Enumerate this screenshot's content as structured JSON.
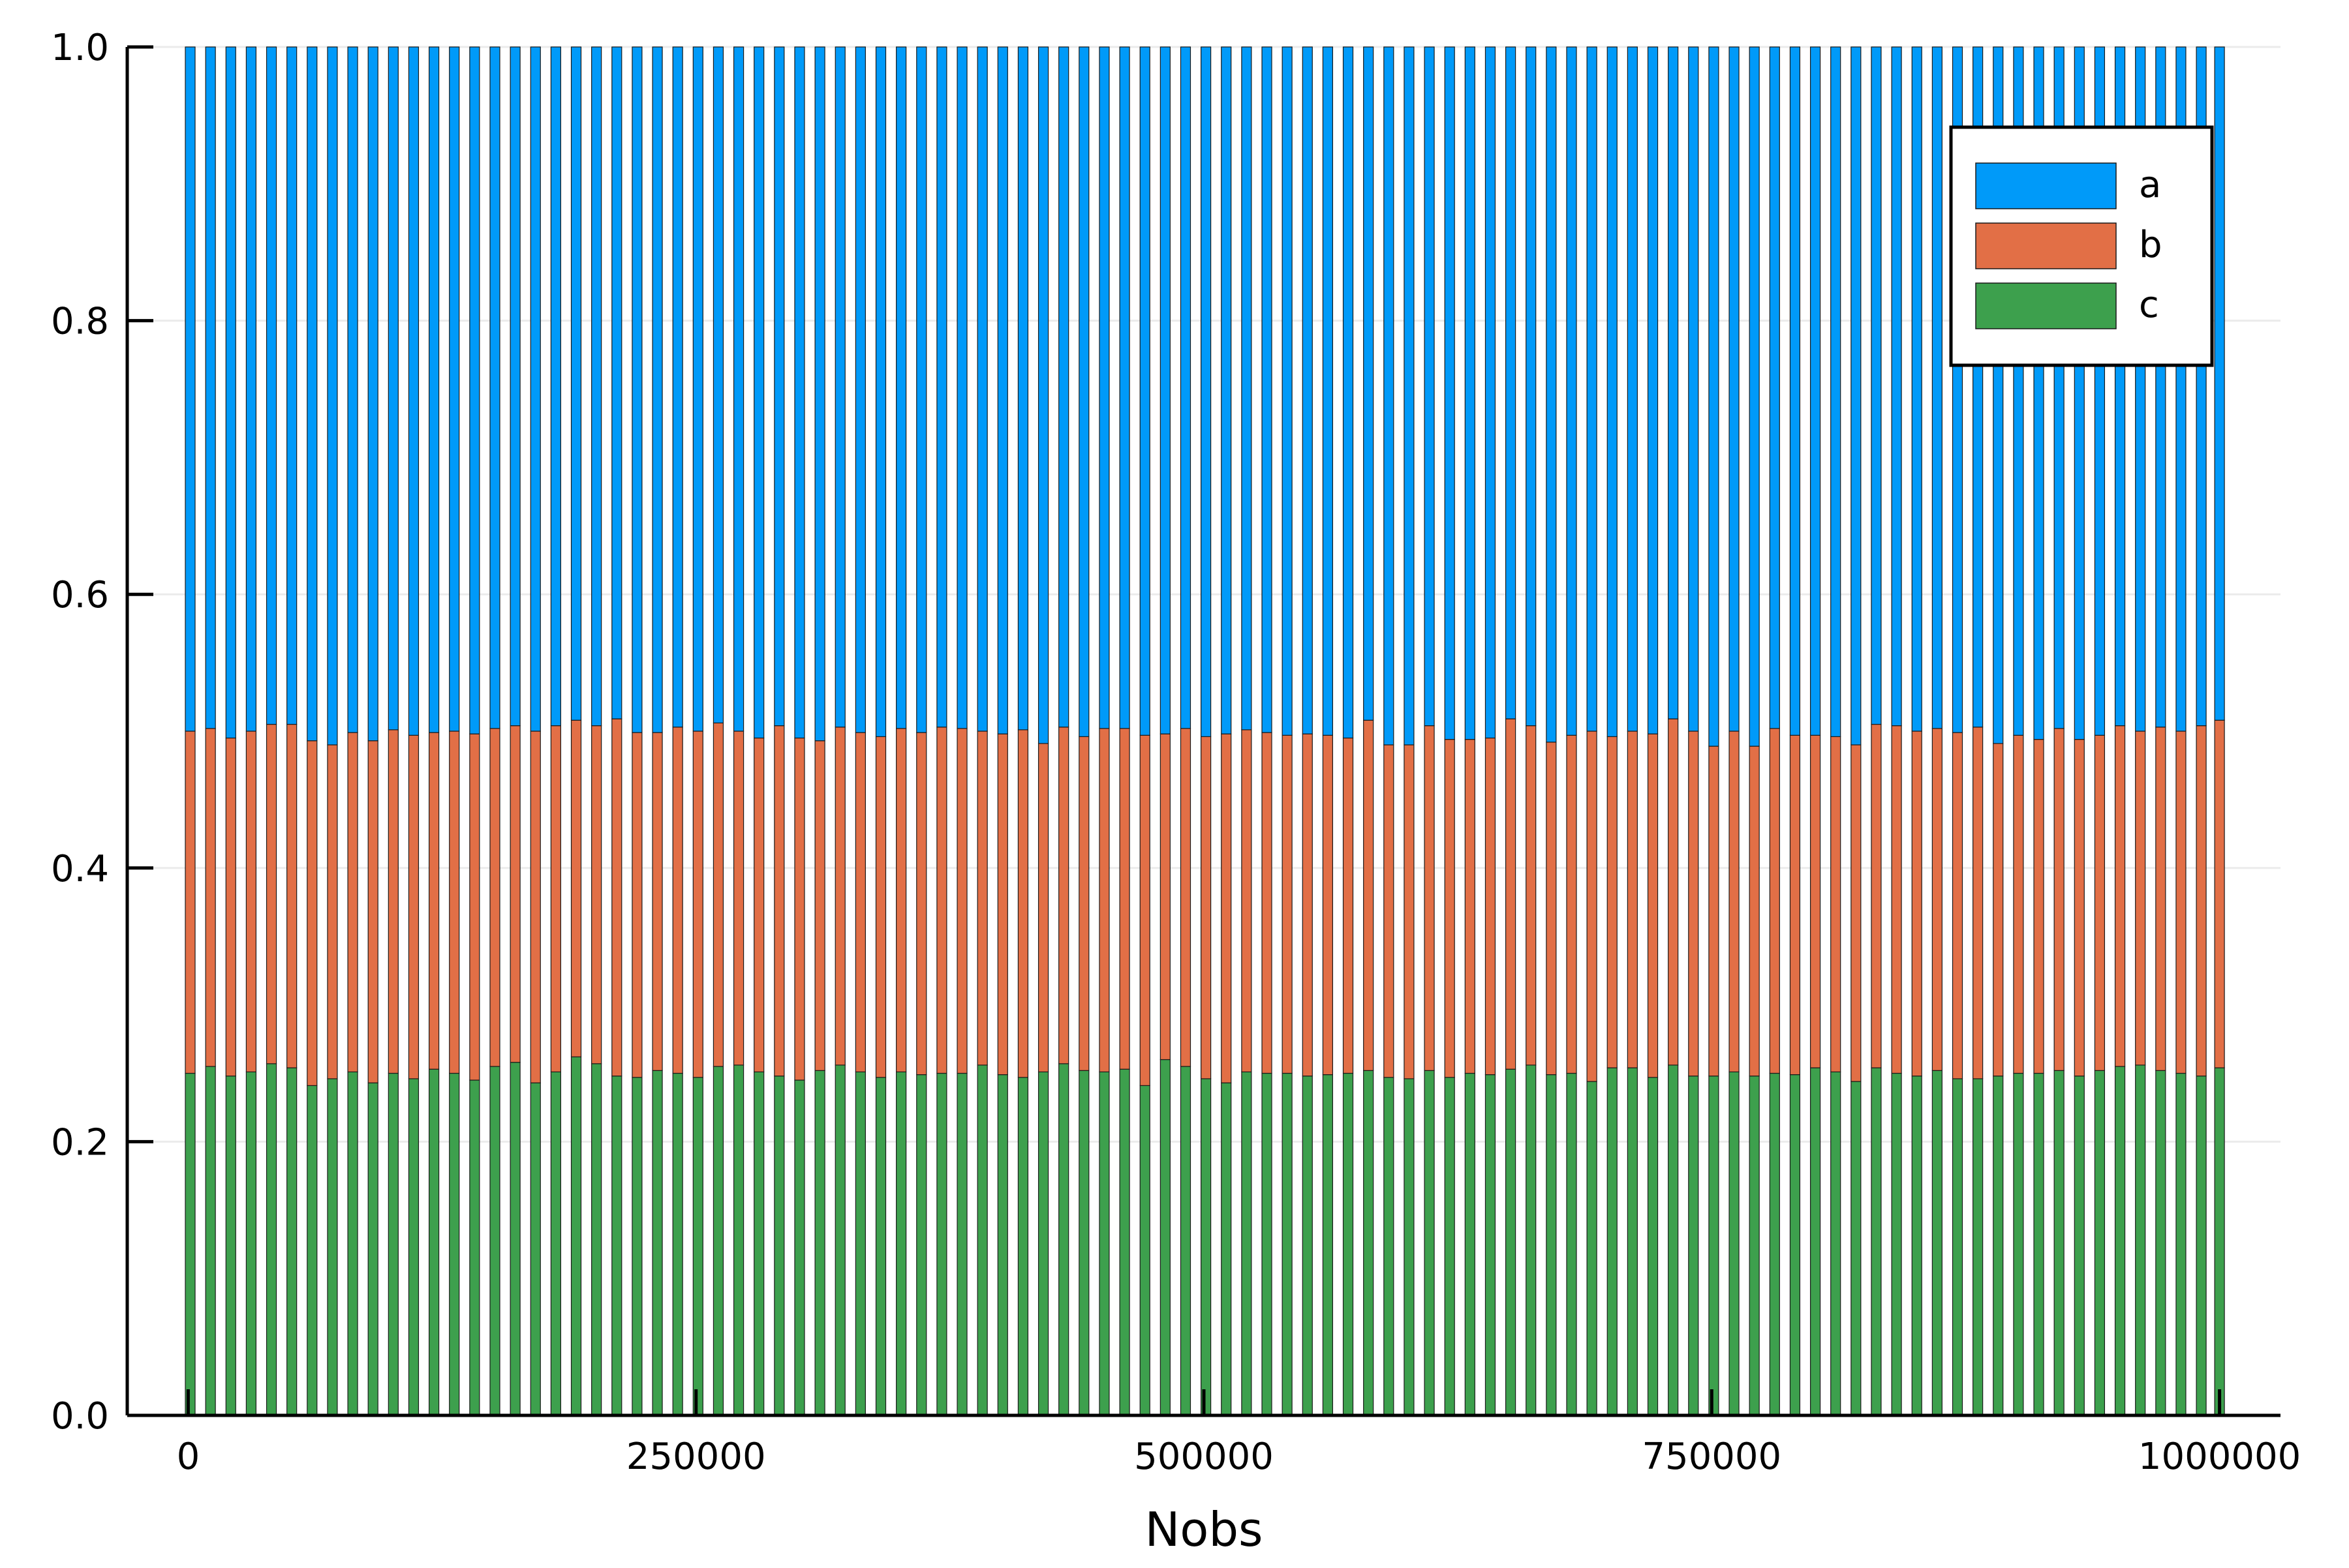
{
  "chart_data": {
    "type": "bar",
    "stacked": true,
    "xlabel": "Nobs",
    "ylabel": "",
    "title": "",
    "xlim": [
      -30000,
      1030000
    ],
    "ylim": [
      0,
      1
    ],
    "x_ticks": [
      0,
      250000,
      500000,
      750000,
      1000000
    ],
    "x_tick_labels": [
      "0",
      "250000",
      "500000",
      "750000",
      "1000000"
    ],
    "y_ticks": [
      0,
      0.2,
      0.4,
      0.6,
      0.8,
      1.0
    ],
    "y_tick_labels": [
      "0.0",
      "0.2",
      "0.4",
      "0.6",
      "0.8",
      "1.0"
    ],
    "grid": true,
    "legend_position": "top-right",
    "x": [
      1000,
      11000,
      21000,
      31000,
      41000,
      51000,
      61000,
      71000,
      81000,
      91000,
      101000,
      111000,
      121000,
      131000,
      141000,
      151000,
      161000,
      171000,
      181000,
      191000,
      201000,
      211000,
      221000,
      231000,
      241000,
      251000,
      261000,
      271000,
      281000,
      291000,
      301000,
      311000,
      321000,
      331000,
      341000,
      351000,
      361000,
      371000,
      381000,
      391000,
      401000,
      411000,
      421000,
      431000,
      441000,
      451000,
      461000,
      471000,
      481000,
      491000,
      501000,
      511000,
      521000,
      531000,
      541000,
      551000,
      561000,
      571000,
      581000,
      591000,
      601000,
      611000,
      621000,
      631000,
      641000,
      651000,
      661000,
      671000,
      681000,
      691000,
      701000,
      711000,
      721000,
      731000,
      741000,
      751000,
      761000,
      771000,
      781000,
      791000,
      801000,
      811000,
      821000,
      831000,
      841000,
      851000,
      861000,
      871000,
      881000,
      891000,
      901000,
      911000,
      921000,
      931000,
      941000,
      951000,
      961000,
      971000,
      981000,
      991000,
      1000000
    ],
    "series": [
      {
        "name": "c",
        "color": "#3DA04D",
        "values": [
          0.25,
          0.255,
          0.248,
          0.251,
          0.257,
          0.254,
          0.241,
          0.246,
          0.251,
          0.243,
          0.25,
          0.246,
          0.253,
          0.25,
          0.245,
          0.255,
          0.258,
          0.243,
          0.251,
          0.262,
          0.257,
          0.248,
          0.247,
          0.252,
          0.25,
          0.247,
          0.255,
          0.256,
          0.251,
          0.248,
          0.245,
          0.252,
          0.256,
          0.251,
          0.247,
          0.251,
          0.249,
          0.25,
          0.25,
          0.256,
          0.249,
          0.247,
          0.251,
          0.257,
          0.252,
          0.251,
          0.253,
          0.241,
          0.26,
          0.255,
          0.246,
          0.243,
          0.251,
          0.25,
          0.25,
          0.248,
          0.249,
          0.25,
          0.252,
          0.247,
          0.246,
          0.252,
          0.247,
          0.25,
          0.249,
          0.253,
          0.256,
          0.249,
          0.25,
          0.244,
          0.254,
          0.254,
          0.247,
          0.256,
          0.248,
          0.248,
          0.251,
          0.248,
          0.25,
          0.249,
          0.254,
          0.251,
          0.244,
          0.254,
          0.25,
          0.248,
          0.252,
          0.246,
          0.246,
          0.248,
          0.25,
          0.25,
          0.252,
          0.248,
          0.252,
          0.255,
          0.256,
          0.252,
          0.25,
          0.248,
          0.254
        ]
      },
      {
        "name": "b",
        "color": "#E26F46",
        "values": [
          0.25,
          0.247,
          0.247,
          0.249,
          0.248,
          0.251,
          0.252,
          0.244,
          0.248,
          0.25,
          0.251,
          0.251,
          0.246,
          0.25,
          0.253,
          0.247,
          0.246,
          0.257,
          0.253,
          0.246,
          0.247,
          0.261,
          0.252,
          0.247,
          0.253,
          0.253,
          0.251,
          0.244,
          0.244,
          0.256,
          0.25,
          0.241,
          0.247,
          0.248,
          0.249,
          0.251,
          0.25,
          0.253,
          0.252,
          0.244,
          0.249,
          0.254,
          0.24,
          0.246,
          0.244,
          0.251,
          0.249,
          0.256,
          0.238,
          0.247,
          0.25,
          0.255,
          0.25,
          0.249,
          0.247,
          0.25,
          0.248,
          0.245,
          0.256,
          0.243,
          0.244,
          0.252,
          0.247,
          0.244,
          0.246,
          0.256,
          0.248,
          0.243,
          0.247,
          0.256,
          0.242,
          0.246,
          0.251,
          0.253,
          0.252,
          0.241,
          0.249,
          0.241,
          0.252,
          0.248,
          0.243,
          0.245,
          0.246,
          0.251,
          0.254,
          0.252,
          0.25,
          0.253,
          0.257,
          0.243,
          0.247,
          0.244,
          0.25,
          0.246,
          0.245,
          0.249,
          0.244,
          0.251,
          0.25,
          0.256,
          0.254
        ]
      },
      {
        "name": "a",
        "color": "#009AF9",
        "values": [
          0.5,
          0.498,
          0.505,
          0.5,
          0.495,
          0.495,
          0.507,
          0.51,
          0.501,
          0.507,
          0.499,
          0.503,
          0.501,
          0.5,
          0.502,
          0.498,
          0.496,
          0.5,
          0.496,
          0.492,
          0.496,
          0.491,
          0.501,
          0.501,
          0.497,
          0.5,
          0.494,
          0.5,
          0.505,
          0.496,
          0.505,
          0.507,
          0.497,
          0.501,
          0.504,
          0.498,
          0.501,
          0.497,
          0.498,
          0.5,
          0.502,
          0.499,
          0.509,
          0.497,
          0.504,
          0.498,
          0.498,
          0.503,
          0.502,
          0.498,
          0.504,
          0.502,
          0.499,
          0.501,
          0.503,
          0.502,
          0.503,
          0.505,
          0.492,
          0.51,
          0.51,
          0.496,
          0.506,
          0.506,
          0.505,
          0.491,
          0.496,
          0.508,
          0.503,
          0.5,
          0.504,
          0.5,
          0.502,
          0.491,
          0.5,
          0.511,
          0.5,
          0.511,
          0.498,
          0.503,
          0.503,
          0.504,
          0.51,
          0.495,
          0.496,
          0.5,
          0.498,
          0.501,
          0.497,
          0.509,
          0.503,
          0.506,
          0.498,
          0.506,
          0.503,
          0.496,
          0.5,
          0.497,
          0.5,
          0.496,
          0.492
        ]
      }
    ],
    "legend": [
      {
        "label": "a",
        "color": "#009AF9"
      },
      {
        "label": "b",
        "color": "#E26F46"
      },
      {
        "label": "c",
        "color": "#3DA04D"
      }
    ]
  }
}
